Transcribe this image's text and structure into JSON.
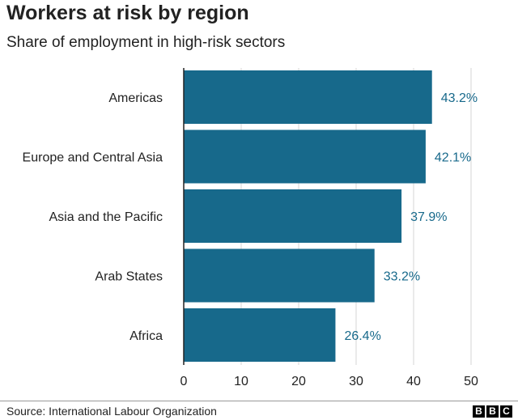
{
  "title": "Workers at risk by region",
  "subtitle": "Share of employment in high-risk sectors",
  "source": "Source: International Labour Organization",
  "logo": {
    "letters": [
      "B",
      "B",
      "C"
    ]
  },
  "colors": {
    "bar": "#17698b",
    "value_label": "#17698b",
    "grid": "#d6d6d6",
    "axis": "#222222"
  },
  "chart_data": {
    "type": "bar",
    "orientation": "horizontal",
    "categories": [
      "Americas",
      "Europe and Central Asia",
      "Asia and the Pacific",
      "Arab States",
      "Africa"
    ],
    "values": [
      43.2,
      42.1,
      37.9,
      33.2,
      26.4
    ],
    "value_labels": [
      "43.2%",
      "42.1%",
      "37.9%",
      "33.2%",
      "26.4%"
    ],
    "xlim": [
      0,
      50
    ],
    "xticks": [
      0,
      10,
      20,
      30,
      40,
      50
    ],
    "grid": true,
    "title": "Workers at risk by region",
    "subtitle": "Share of employment in high-risk sectors"
  }
}
